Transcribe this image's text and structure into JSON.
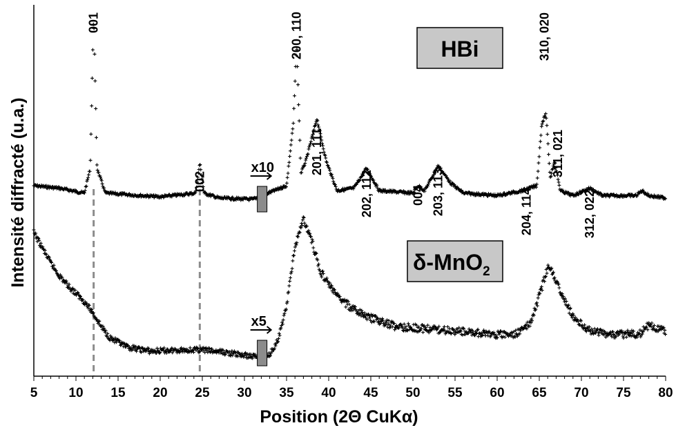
{
  "chart_data": {
    "type": "scatter",
    "title": "",
    "xlabel": "Position (2Θ CuKα)",
    "ylabel": "Intensité diffracté (u.a.)",
    "xlim": [
      5,
      80
    ],
    "x_ticks": [
      "5",
      "10",
      "15",
      "20",
      "25",
      "30",
      "35",
      "40",
      "45",
      "50",
      "55",
      "60",
      "65",
      "70",
      "75",
      "80"
    ],
    "grid": false,
    "dashed_reference_lines_x": [
      12.1,
      24.7
    ],
    "series": [
      {
        "name": "HBi",
        "scale_break": {
          "x": 32.1,
          "factor_label": "x10"
        },
        "profile": [
          [
            5,
            0.05
          ],
          [
            8,
            0.04
          ],
          [
            11,
            0.02
          ],
          [
            11.7,
            0.12
          ],
          [
            12.1,
            0.75
          ],
          [
            12.5,
            0.12
          ],
          [
            13.5,
            0.02
          ],
          [
            20,
            0.005
          ],
          [
            24.2,
            0.02
          ],
          [
            24.7,
            0.14
          ],
          [
            25.2,
            0.02
          ],
          [
            27,
            0.0
          ],
          [
            31,
            -0.005
          ],
          [
            35,
            0.05
          ],
          [
            35.8,
            0.3
          ],
          [
            36.2,
            0.62
          ],
          [
            36.7,
            0.1
          ],
          [
            37.3,
            0.15
          ],
          [
            38.6,
            0.32
          ],
          [
            39.7,
            0.15
          ],
          [
            41,
            0.03
          ],
          [
            43,
            0.04
          ],
          [
            44.5,
            0.12
          ],
          [
            46,
            0.03
          ],
          [
            50,
            0.02
          ],
          [
            50.6,
            0.05
          ],
          [
            51.4,
            0.03
          ],
          [
            52.2,
            0.08
          ],
          [
            53,
            0.13
          ],
          [
            54.5,
            0.06
          ],
          [
            56,
            0.02
          ],
          [
            60,
            0.01
          ],
          [
            63,
            0.03
          ],
          [
            64.7,
            0.05
          ],
          [
            65.3,
            0.3
          ],
          [
            65.8,
            0.34
          ],
          [
            66.3,
            0.08
          ],
          [
            66.8,
            0.15
          ],
          [
            67.5,
            0.03
          ],
          [
            69,
            0.01
          ],
          [
            71,
            0.04
          ],
          [
            72.5,
            0.01
          ],
          [
            76.5,
            0.01
          ],
          [
            77.2,
            0.03
          ],
          [
            78,
            0.01
          ],
          [
            80,
            0.0
          ]
        ]
      },
      {
        "name": "δ-MnO2",
        "scale_break": {
          "x": 32.1,
          "factor_label": "x5"
        },
        "profile": [
          [
            5,
            0.88
          ],
          [
            6,
            0.77
          ],
          [
            7,
            0.66
          ],
          [
            8,
            0.57
          ],
          [
            9,
            0.5
          ],
          [
            10,
            0.44
          ],
          [
            11,
            0.38
          ],
          [
            12,
            0.3
          ],
          [
            13,
            0.2
          ],
          [
            14,
            0.12
          ],
          [
            16,
            0.05
          ],
          [
            19,
            0.02
          ],
          [
            22,
            0.03
          ],
          [
            25,
            0.03
          ],
          [
            28,
            0.01
          ],
          [
            30,
            -0.01
          ],
          [
            32,
            -0.02
          ],
          [
            33,
            0.0
          ],
          [
            34,
            0.1
          ],
          [
            35,
            0.35
          ],
          [
            36,
            0.78
          ],
          [
            37,
            0.98
          ],
          [
            38,
            0.82
          ],
          [
            39,
            0.6
          ],
          [
            41,
            0.42
          ],
          [
            43,
            0.32
          ],
          [
            45,
            0.26
          ],
          [
            48,
            0.2
          ],
          [
            52,
            0.18
          ],
          [
            55,
            0.17
          ],
          [
            58,
            0.15
          ],
          [
            60,
            0.14
          ],
          [
            62,
            0.14
          ],
          [
            64,
            0.22
          ],
          [
            65,
            0.42
          ],
          [
            66,
            0.62
          ],
          [
            66.5,
            0.61
          ],
          [
            67.5,
            0.45
          ],
          [
            69,
            0.27
          ],
          [
            71,
            0.17
          ],
          [
            74,
            0.14
          ],
          [
            77,
            0.15
          ],
          [
            78,
            0.21
          ],
          [
            80,
            0.17
          ]
        ]
      }
    ],
    "peak_labels": [
      {
        "text": "001",
        "x": 12.1
      },
      {
        "text": "002",
        "x": 24.7
      },
      {
        "text": "200, 110",
        "x": 36.2
      },
      {
        "text": "201, 111",
        "x": 38.6
      },
      {
        "text": "202, 112",
        "x": 44.5
      },
      {
        "text": "004",
        "x": 50.6
      },
      {
        "text": "203, 113",
        "x": 53
      },
      {
        "text": "204, 114",
        "x": 63.5
      },
      {
        "text": "310, 020",
        "x": 65.6
      },
      {
        "text": "311, 021",
        "x": 67.2
      },
      {
        "text": "312, 022",
        "x": 71
      }
    ],
    "box_labels": {
      "hbi": "HBi",
      "mno2_prefix": "δ-MnO",
      "mno2_sub": "2"
    }
  }
}
